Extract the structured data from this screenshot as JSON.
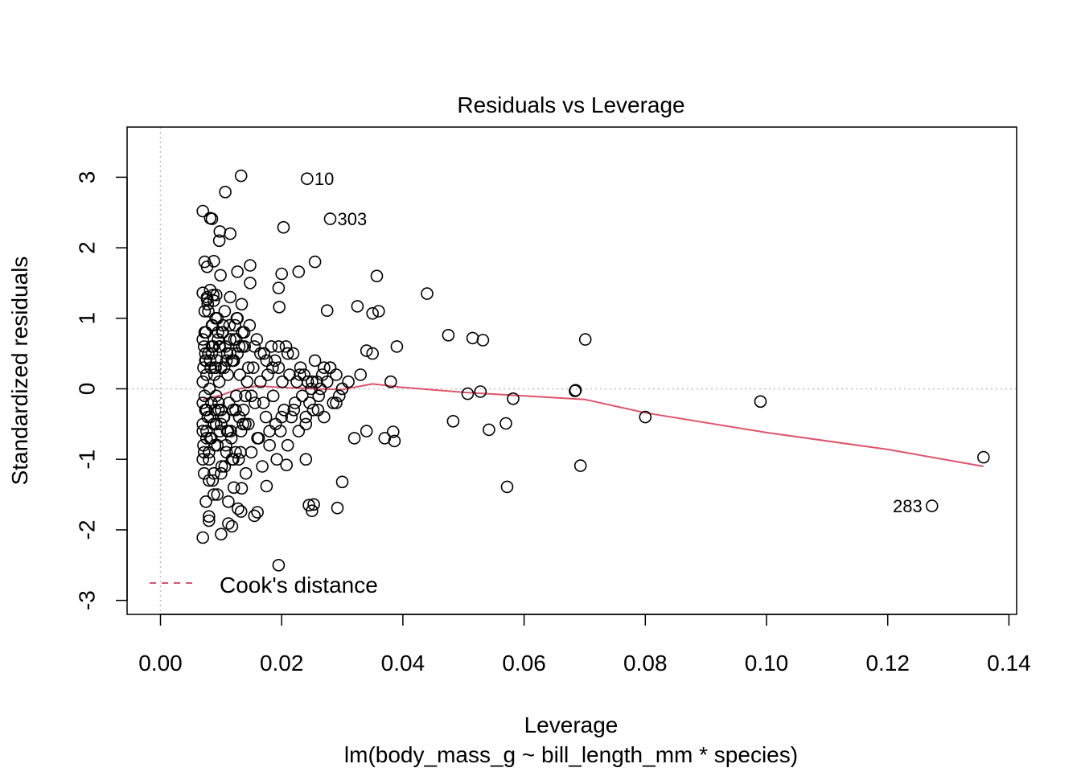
{
  "chart_data": {
    "type": "scatter",
    "title": "Residuals vs Leverage",
    "xlabel": "Leverage",
    "subtitle": "lm(body_mass_g ~ bill_length_mm * species)",
    "ylabel": "Standardized residuals",
    "xlim": [
      -0.0055,
      0.1415
    ],
    "ylim": [
      -3.18,
      3.74
    ],
    "x_ticks": [
      0.0,
      0.02,
      0.04,
      0.06,
      0.08,
      0.1,
      0.12,
      0.14
    ],
    "x_tick_labels": [
      "0.00",
      "0.02",
      "0.04",
      "0.06",
      "0.08",
      "0.10",
      "0.12",
      "0.14"
    ],
    "y_ticks": [
      -3,
      -2,
      -1,
      0,
      1,
      2,
      3
    ],
    "y_tick_labels": [
      "-3",
      "-2",
      "-1",
      "0",
      "1",
      "2",
      "3"
    ],
    "reference_lines": {
      "x": 0,
      "y": 0,
      "style": "dotted",
      "color": "#bebebe"
    },
    "smooth_color": "#df536b",
    "point_color": "#000000",
    "legend": {
      "label": "Cook's distance",
      "style": "dashed",
      "color": "#df536b",
      "position": "bottom-left"
    },
    "labeled_points": [
      {
        "label": "10",
        "x": 0.0242,
        "y": 2.98
      },
      {
        "label": "303",
        "x": 0.028,
        "y": 2.41
      },
      {
        "label": "283",
        "x": 0.1273,
        "y": -1.66
      }
    ],
    "smooth_line": {
      "x": [
        0.007,
        0.01,
        0.013,
        0.016,
        0.02,
        0.025,
        0.03,
        0.035,
        0.04,
        0.05,
        0.06,
        0.07,
        0.08,
        0.1,
        0.12,
        0.1358
      ],
      "y": [
        -0.15,
        -0.09,
        0.0,
        0.04,
        0.02,
        0.0,
        -0.01,
        0.07,
        0.02,
        -0.05,
        -0.1,
        -0.15,
        -0.34,
        -0.62,
        -0.86,
        -1.1
      ]
    },
    "points": {
      "x": [
        0.007,
        0.007,
        0.007,
        0.0071,
        0.0071,
        0.0072,
        0.0072,
        0.0073,
        0.0073,
        0.0074,
        0.0074,
        0.0075,
        0.0075,
        0.0076,
        0.0076,
        0.0077,
        0.0078,
        0.0079,
        0.008,
        0.0081,
        0.0082,
        0.0082,
        0.0083,
        0.0084,
        0.0085,
        0.0086,
        0.0087,
        0.0088,
        0.0089,
        0.009,
        0.0091,
        0.0092,
        0.0093,
        0.0094,
        0.0095,
        0.0096,
        0.0097,
        0.0098,
        0.01,
        0.0101,
        0.0103,
        0.0105,
        0.0107,
        0.0109,
        0.0111,
        0.0113,
        0.0115,
        0.0117,
        0.0119,
        0.0121,
        0.0123,
        0.0125,
        0.0127,
        0.0129,
        0.0131,
        0.0133,
        0.0135,
        0.0137,
        0.0139,
        0.0141,
        0.0143,
        0.0145,
        0.0147,
        0.015,
        0.0153,
        0.0156,
        0.0159,
        0.0162,
        0.0165,
        0.0168,
        0.0171,
        0.0174,
        0.0177,
        0.018,
        0.0183,
        0.0186,
        0.0189,
        0.0192,
        0.0195,
        0.0198,
        0.0201,
        0.0204,
        0.0207,
        0.021,
        0.0213,
        0.0216,
        0.0219,
        0.0222,
        0.0225,
        0.0228,
        0.0231,
        0.0234,
        0.0237,
        0.024,
        0.0243,
        0.0246,
        0.0249,
        0.0252,
        0.0255,
        0.0258,
        0.0261,
        0.0264,
        0.0267,
        0.027,
        0.0275,
        0.028,
        0.0285,
        0.029,
        0.0295,
        0.03,
        0.007,
        0.0072,
        0.0074,
        0.0076,
        0.0078,
        0.008,
        0.0082,
        0.0084,
        0.0086,
        0.0088,
        0.009,
        0.0092,
        0.0094,
        0.0096,
        0.0098,
        0.01,
        0.0102,
        0.0104,
        0.0106,
        0.0108,
        0.011,
        0.0112,
        0.0114,
        0.0116,
        0.0118,
        0.012,
        0.0122,
        0.0124,
        0.0126,
        0.0128,
        0.013,
        0.0132,
        0.0134,
        0.0136,
        0.0138,
        0.014,
        0.007,
        0.0073,
        0.0076,
        0.0079,
        0.0082,
        0.0085,
        0.0088,
        0.0091,
        0.0094,
        0.0097,
        0.01,
        0.0103,
        0.0106,
        0.0109,
        0.0112,
        0.0115,
        0.0118,
        0.0121,
        0.0124,
        0.0127,
        0.013,
        0.007,
        0.0075,
        0.008,
        0.0085,
        0.009,
        0.0095,
        0.01,
        0.0105,
        0.011,
        0.0115,
        0.012,
        0.0125,
        0.013,
        0.0135,
        0.014,
        0.0145,
        0.015,
        0.0155,
        0.016,
        0.0165,
        0.017,
        0.0175,
        0.018,
        0.0185,
        0.019,
        0.0195,
        0.02,
        0.021,
        0.022,
        0.023,
        0.024,
        0.025,
        0.026,
        0.027,
        0.028,
        0.029,
        0.03,
        0.031,
        0.032,
        0.033,
        0.034,
        0.035,
        0.036,
        0.037,
        0.038,
        0.039,
        0.044,
        0.0475,
        0.0483,
        0.0507,
        0.0515,
        0.0528,
        0.0532,
        0.0542,
        0.057,
        0.0572,
        0.0582,
        0.0684,
        0.0685,
        0.0693,
        0.0701,
        0.08,
        0.099,
        0.1358,
        0.1273,
        0.0242,
        0.028,
        0.0133,
        0.0107,
        0.007,
        0.0085,
        0.0203,
        0.0115,
        0.0097,
        0.0255,
        0.02,
        0.0228,
        0.0148,
        0.0357,
        0.0127,
        0.0099,
        0.0088,
        0.0148,
        0.0195,
        0.0092,
        0.0073,
        0.007,
        0.0077,
        0.0087,
        0.0196,
        0.0088,
        0.0275,
        0.0077,
        0.008,
        0.008,
        0.0112,
        0.0118,
        0.0133,
        0.0155,
        0.016,
        0.01,
        0.0134,
        0.0175,
        0.0208,
        0.0245,
        0.025,
        0.0253,
        0.024,
        0.0292,
        0.03,
        0.035,
        0.0325,
        0.034,
        0.0384,
        0.0386,
        0.0195,
        0.007,
        0.0098,
        0.0082
      ],
      "y": [
        -0.2,
        0.1,
        -0.5,
        0.3,
        -0.8,
        0.6,
        -1.2,
        1.1,
        -0.1,
        0.4,
        -0.3,
        0.8,
        -1.6,
        0.2,
        -0.6,
        1.3,
        -0.4,
        0.5,
        -1.0,
        0.0,
        -0.7,
        1.4,
        0.3,
        -0.2,
        0.9,
        -1.3,
        0.6,
        -0.5,
        0.2,
        -0.8,
        1.0,
        -0.1,
        0.4,
        -1.5,
        0.7,
        -0.3,
        0.1,
        -0.6,
        0.3,
        -1.1,
        0.8,
        -0.4,
        0.6,
        -0.9,
        0.2,
        -0.2,
        1.3,
        -0.7,
        0.4,
        -1.4,
        0.9,
        -0.1,
        0.5,
        -1.0,
        0.2,
        -0.6,
        0.8,
        -0.3,
        0.6,
        -1.2,
        0.1,
        -0.5,
        0.9,
        -0.9,
        0.3,
        -0.2,
        0.7,
        -0.7,
        0.1,
        -1.1,
        0.5,
        -0.4,
        0.2,
        -0.8,
        0.6,
        -0.1,
        0.4,
        -1.0,
        0.3,
        -0.6,
        0.1,
        -0.3,
        0.6,
        -0.8,
        0.2,
        -0.4,
        0.5,
        -0.2,
        0.1,
        -0.6,
        0.3,
        -0.1,
        0.2,
        -0.5,
        0.1,
        -0.2,
        0.0,
        -0.3,
        0.4,
        0.1,
        -0.1,
        0.0,
        0.2,
        -0.4,
        0.1,
        0.3,
        -0.2,
        0.2,
        -0.1,
        0.0,
        0.7,
        -0.9,
        0.5,
        -0.3,
        1.2,
        -1.3,
        0.4,
        -0.7,
        0.9,
        -1.5,
        0.3,
        -0.5,
        1.0,
        -0.2,
        0.6,
        -1.2,
        0.8,
        -0.4,
        1.1,
        -0.8,
        0.5,
        -1.6,
        0.9,
        -0.6,
        0.4,
        -1.0,
        0.7,
        -0.3,
        1.0,
        -1.7,
        0.6,
        -0.9,
        1.2,
        -0.5,
        0.8,
        -0.1,
        -1.0,
        0.8,
        -0.7,
        1.1,
        -0.4,
        0.5,
        -1.2,
        0.3,
        -0.8,
        0.6,
        -0.3,
        0.9,
        -1.1,
        0.4,
        -0.6,
        0.7,
        -1.0,
        0.4,
        -0.9,
        1.0,
        -0.4,
        -0.6,
        0.4,
        -0.9,
        0.6,
        -0.3,
        0.8,
        -0.5,
        0.3,
        -0.6,
        0.5,
        -0.3,
        0.7,
        -0.4,
        0.6,
        -0.5,
        0.3,
        -0.1,
        0.6,
        -0.7,
        0.5,
        -0.2,
        0.4,
        -0.6,
        0.3,
        -0.5,
        0.6,
        -0.4,
        0.5,
        -0.3,
        0.2,
        -0.4,
        0.1,
        -0.3,
        0.3,
        0.3,
        -0.2,
        0.0,
        0.1,
        -0.7,
        0.2,
        -0.6,
        0.5,
        1.1,
        -0.7,
        0.1,
        0.6,
        1.35,
        0.76,
        -0.46,
        -0.07,
        0.72,
        -0.04,
        0.69,
        -0.58,
        -0.49,
        -1.39,
        -0.14,
        -0.03,
        -0.02,
        -1.09,
        0.7,
        -0.4,
        -0.18,
        -0.97,
        -1.66,
        2.98,
        2.41,
        3.02,
        2.79,
        2.52,
        2.41,
        2.29,
        2.2,
        2.1,
        1.8,
        1.63,
        1.66,
        1.75,
        1.6,
        1.66,
        1.61,
        1.81,
        1.5,
        1.43,
        1.33,
        1.8,
        1.36,
        1.73,
        1.33,
        1.16,
        1.25,
        1.11,
        1.27,
        -1.87,
        -1.81,
        -1.91,
        -1.95,
        -1.74,
        -1.8,
        -1.75,
        -2.06,
        -1.41,
        -1.38,
        -1.08,
        -1.65,
        -1.73,
        -1.64,
        -1.0,
        -1.69,
        -1.32,
        1.07,
        1.17,
        0.54,
        -0.61,
        -0.74,
        -2.5,
        -2.11,
        2.23,
        2.42
      ]
    }
  }
}
